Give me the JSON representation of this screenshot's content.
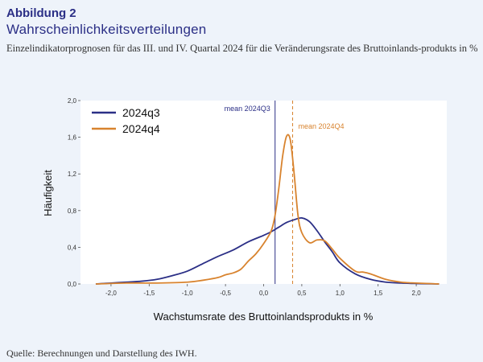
{
  "figure": {
    "label": "Abbildung 2",
    "title": "Wahrscheinlichkeitsverteilungen",
    "subtitle": "Einzelindikatorprognosen für das III. und IV. Quartal 2024 für die Veränderungsrate des Bruttoinlands-produkts in %",
    "source": "Quelle: Berechnungen und Darstellung des IWH."
  },
  "chart_data": {
    "type": "line",
    "xlabel": "Wachstumsrate des Bruttoinlandsprodukts in %",
    "ylabel": "Häufigkeit",
    "xlim": [
      -2.4,
      2.4
    ],
    "ylim": [
      0,
      2.0
    ],
    "xticks": [
      -2.0,
      -1.5,
      -1.0,
      -0.5,
      0.0,
      0.5,
      1.0,
      1.5,
      2.0
    ],
    "xtick_labels": [
      "-2,0",
      "-1,5",
      "-1,0",
      "-0,5",
      "0,0",
      "0,5",
      "1,0",
      "1,5",
      "2,0"
    ],
    "yticks": [
      0,
      0.4,
      0.8,
      1.2,
      1.6,
      2.0
    ],
    "ytick_labels": [
      "0,0",
      "0,4",
      "0,8",
      "1,2",
      "1,6",
      "2,0"
    ],
    "grid": false,
    "legend_position": "top-left",
    "series": [
      {
        "name": "2024q3",
        "color": "#2b2f86",
        "x": [
          -2.2,
          -2.0,
          -1.8,
          -1.6,
          -1.4,
          -1.2,
          -1.0,
          -0.8,
          -0.6,
          -0.4,
          -0.2,
          0.0,
          0.1,
          0.2,
          0.3,
          0.4,
          0.5,
          0.6,
          0.7,
          0.8,
          0.9,
          1.0,
          1.2,
          1.4,
          1.6,
          1.8,
          2.0,
          2.3
        ],
        "y": [
          0.0,
          0.01,
          0.02,
          0.03,
          0.05,
          0.09,
          0.14,
          0.22,
          0.3,
          0.37,
          0.46,
          0.53,
          0.57,
          0.62,
          0.67,
          0.7,
          0.72,
          0.68,
          0.58,
          0.46,
          0.35,
          0.23,
          0.11,
          0.05,
          0.02,
          0.01,
          0.005,
          0.0
        ]
      },
      {
        "name": "2024q4",
        "color": "#d8832e",
        "x": [
          -2.2,
          -1.8,
          -1.4,
          -1.0,
          -0.8,
          -0.6,
          -0.5,
          -0.4,
          -0.3,
          -0.2,
          -0.1,
          0.0,
          0.1,
          0.15,
          0.2,
          0.25,
          0.3,
          0.35,
          0.4,
          0.45,
          0.5,
          0.6,
          0.7,
          0.8,
          0.9,
          1.0,
          1.2,
          1.3,
          1.4,
          1.6,
          1.8,
          2.0,
          2.3
        ],
        "y": [
          0.0,
          0.01,
          0.01,
          0.02,
          0.04,
          0.07,
          0.1,
          0.12,
          0.16,
          0.25,
          0.33,
          0.44,
          0.58,
          0.75,
          1.05,
          1.4,
          1.61,
          1.57,
          1.2,
          0.75,
          0.56,
          0.45,
          0.48,
          0.47,
          0.38,
          0.28,
          0.14,
          0.13,
          0.11,
          0.05,
          0.02,
          0.01,
          0.0
        ]
      }
    ],
    "reference_lines": [
      {
        "label": "mean 2024Q3",
        "x": 0.15,
        "color": "#2b2f86",
        "style": "solid"
      },
      {
        "label": "mean 2024Q4",
        "x": 0.38,
        "color": "#d8832e",
        "style": "dashed"
      }
    ]
  }
}
